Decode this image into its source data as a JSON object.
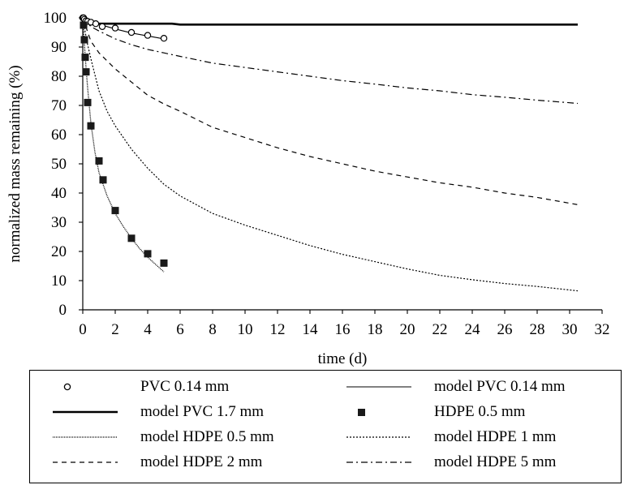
{
  "chart_data": {
    "type": "line",
    "title": "",
    "xlabel": "time (d)",
    "ylabel": "normalized mass remaining (%)",
    "xlim": [
      0,
      32
    ],
    "ylim": [
      0,
      100
    ],
    "xticks": [
      0,
      2,
      4,
      6,
      8,
      10,
      12,
      14,
      16,
      18,
      20,
      22,
      24,
      26,
      28,
      30,
      32
    ],
    "yticks": [
      0,
      10,
      20,
      30,
      40,
      50,
      60,
      70,
      80,
      90,
      100
    ],
    "grid": false,
    "legend_position": "bottom",
    "series": [
      {
        "name": "PVC 0.14 mm",
        "kind": "markers",
        "marker": "open-circle",
        "x": [
          0,
          0.05,
          0.1,
          0.2,
          0.3,
          0.5,
          0.8,
          1.2,
          2,
          3,
          4,
          5
        ],
        "y": [
          100,
          100,
          99.5,
          99,
          98.8,
          98.5,
          98,
          97,
          96.5,
          95,
          94,
          93
        ]
      },
      {
        "name": "model PVC 0.14 mm",
        "kind": "line",
        "style": "thin-solid",
        "x": [
          0,
          0.2,
          0.5,
          1,
          1.5,
          2,
          3,
          4,
          5
        ],
        "y": [
          100,
          99.3,
          98.6,
          97.8,
          97.0,
          96.2,
          94.8,
          93.8,
          92.8
        ]
      },
      {
        "name": "model PVC 1.7 mm",
        "kind": "line",
        "style": "thick-solid",
        "x": [
          0,
          0.5,
          1,
          2,
          4,
          5.5,
          6,
          10,
          20,
          30.5
        ],
        "y": [
          98,
          98,
          98,
          98,
          98,
          98,
          97.7,
          97.7,
          97.7,
          97.7
        ]
      },
      {
        "name": "HDPE 0.5 mm",
        "kind": "markers",
        "marker": "filled-square",
        "x": [
          0.05,
          0.1,
          0.15,
          0.2,
          0.3,
          0.5,
          1,
          1.25,
          2,
          3,
          4,
          5
        ],
        "y": [
          97.5,
          92.5,
          86.5,
          81.5,
          71,
          63,
          51,
          44.5,
          34,
          24.5,
          19.2,
          16
        ]
      },
      {
        "name": "model HDPE 0.5 mm",
        "kind": "line",
        "style": "dotted",
        "x": [
          0,
          0.1,
          0.2,
          0.3,
          0.5,
          0.75,
          1,
          1.5,
          2,
          2.5,
          3,
          3.5,
          4,
          4.5,
          5
        ],
        "y": [
          100,
          91,
          83,
          76,
          64,
          54,
          47,
          39,
          33,
          28.5,
          24.5,
          21,
          18,
          15.5,
          13
        ]
      },
      {
        "name": "model HDPE 1 mm",
        "kind": "line",
        "style": "fine-dotted",
        "x": [
          0,
          0.25,
          0.5,
          1,
          1.5,
          2,
          3,
          4,
          5,
          6,
          8,
          10,
          12,
          14,
          16,
          18,
          20,
          22,
          24,
          26,
          28,
          30.5
        ],
        "y": [
          100,
          92,
          86,
          75,
          68,
          63,
          55,
          48.5,
          43,
          39,
          33,
          29,
          25.5,
          22,
          19,
          16.5,
          14,
          11.8,
          10.3,
          9,
          8,
          6.5
        ]
      },
      {
        "name": "model HDPE 2 mm",
        "kind": "line",
        "style": "dashed",
        "x": [
          0,
          0.5,
          1,
          2,
          3,
          4,
          5,
          6,
          8,
          10,
          12,
          14,
          16,
          18,
          20,
          22,
          24,
          26,
          28,
          30.5
        ],
        "y": [
          100,
          92,
          88,
          82.5,
          78,
          73.5,
          70.5,
          68,
          62.5,
          59,
          55.5,
          52.5,
          50,
          47.5,
          45.5,
          43.5,
          42,
          40,
          38.5,
          36
        ]
      },
      {
        "name": "model HDPE 5 mm",
        "kind": "line",
        "style": "dash-dot",
        "x": [
          0,
          0.5,
          1,
          2,
          3,
          4,
          5,
          6,
          8,
          10,
          12,
          14,
          16,
          18,
          20,
          22,
          24,
          26,
          28,
          30.5
        ],
        "y": [
          100,
          97,
          95.5,
          92.8,
          90.8,
          89.2,
          88,
          86.8,
          84.5,
          83,
          81.5,
          80,
          78.5,
          77.3,
          76,
          75,
          73.7,
          72.8,
          71.8,
          70.7
        ]
      }
    ]
  },
  "legend": {
    "items": [
      {
        "label": "PVC 0.14 mm"
      },
      {
        "label": "model PVC 0.14 mm"
      },
      {
        "label": "model PVC 1.7 mm"
      },
      {
        "label": "HDPE 0.5 mm"
      },
      {
        "label": "model HDPE 0.5 mm"
      },
      {
        "label": "model HDPE 1 mm"
      },
      {
        "label": "model HDPE 2 mm"
      },
      {
        "label": "model HDPE 5 mm"
      }
    ]
  }
}
